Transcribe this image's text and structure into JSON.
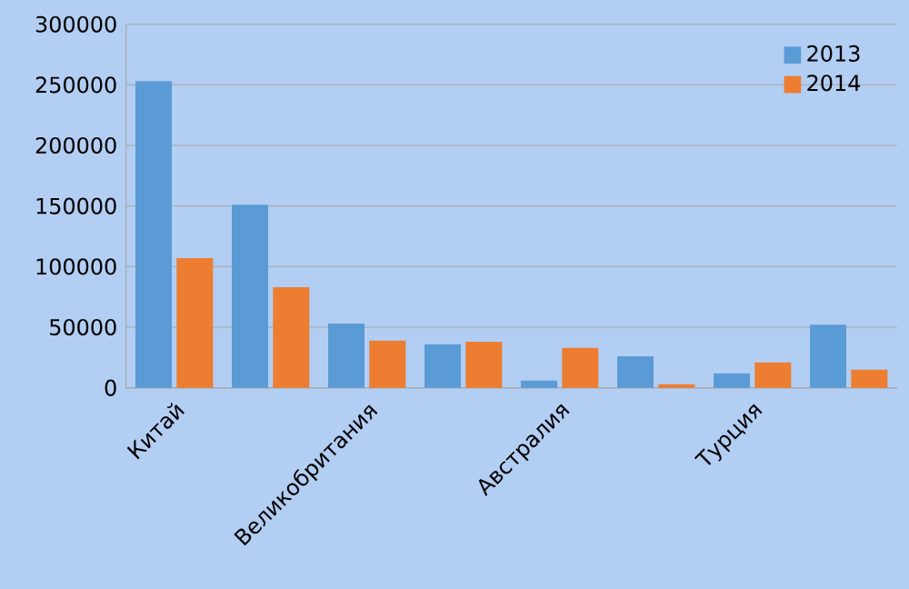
{
  "chart_data": {
    "type": "bar",
    "categories": [
      "Китай",
      null,
      "Великобритания",
      null,
      "Австралия",
      null,
      "Турция",
      null
    ],
    "series": [
      {
        "name": "2013",
        "color": "#5b9bd5",
        "values": [
          253000,
          151000,
          53000,
          36000,
          6000,
          26000,
          12000,
          52000
        ]
      },
      {
        "name": "2014",
        "color": "#ed7d31",
        "values": [
          107000,
          83000,
          39000,
          38000,
          33000,
          3000,
          21000,
          15000
        ]
      }
    ],
    "ylim": [
      0,
      300000
    ],
    "yticks": [
      0,
      50000,
      100000,
      150000,
      200000,
      250000,
      300000
    ],
    "grid": "y",
    "legend": "top right"
  }
}
